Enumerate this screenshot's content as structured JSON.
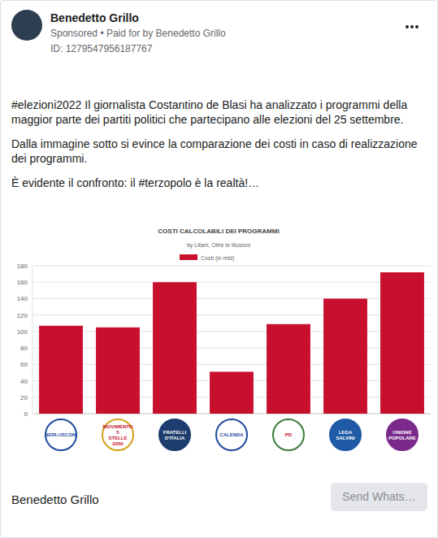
{
  "post": {
    "author": "Benedetto Grillo",
    "sponsored": "Sponsored • Paid for by Benedetto Grillo",
    "id": "ID: 1279547956187767",
    "paragraphs": [
      "#elezioni2022 Il giornalista Costantino de Blasi ha analizzato i programmi della maggior parte dei partiti politici che partecipano alle elezioni del 25 settembre.",
      "Dalla immagine sotto si evince la comparazione dei costi in caso di realizzazione dei programmi.",
      "È evidente il confronto: il #terzopolo è la realtà!…"
    ],
    "footer_name": "Benedetto Grillo",
    "button": "Send Whats…"
  },
  "chart_data": {
    "type": "bar",
    "title": "COSTI CALCOLABILI DEI PROGRAMMI",
    "subtitle": "by Liberi, Oltre le Illusioni",
    "categories": [
      "BERLUSCONI",
      "MOVIMENTO 5 STELLE 2050",
      "FRATELLI D'ITALIA",
      "CALENDA",
      "PD",
      "LEGA SALVINI",
      "UNIONE POPOLARE"
    ],
    "series": [
      {
        "name": "Costi (in mld)",
        "color": "#c8102e",
        "values": [
          107,
          105,
          160,
          51,
          109,
          140,
          172
        ]
      }
    ],
    "ylim": [
      0,
      180
    ],
    "yticks": [
      0,
      20,
      40,
      60,
      80,
      100,
      120,
      140,
      160,
      180
    ],
    "grid": true,
    "legend": "top"
  }
}
